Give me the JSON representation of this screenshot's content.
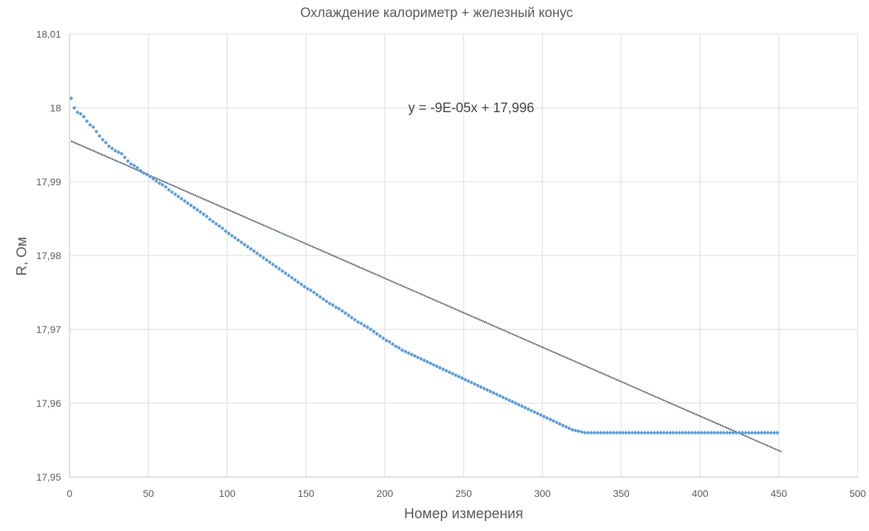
{
  "chart_data": {
    "type": "scatter",
    "title": "Охлаждение калориметр + железный конус",
    "xlabel": "Номер измерения",
    "ylabel": "R, Ом",
    "xlim": [
      0,
      500
    ],
    "ylim": [
      17.95,
      18.01
    ],
    "x_ticks": [
      0,
      50,
      100,
      150,
      200,
      250,
      300,
      350,
      400,
      450,
      500
    ],
    "x_tick_labels": [
      "0",
      "50",
      "100",
      "150",
      "200",
      "250",
      "300",
      "350",
      "400",
      "450",
      "500"
    ],
    "y_ticks": [
      17.95,
      17.96,
      17.97,
      17.98,
      17.99,
      18.0,
      18.01
    ],
    "y_tick_labels": [
      "17,95",
      "17,96",
      "17,97",
      "17,98",
      "17,99",
      "18",
      "18,01"
    ],
    "grid": true,
    "marker_color": "#5b9bd5",
    "trendline_color": "#1f2d3d",
    "series": [
      {
        "x_start": 1,
        "x_step": 2,
        "values": [
          18.0013,
          18.0,
          17.9994,
          17.9992,
          17.9988,
          17.9982,
          17.9977,
          17.9974,
          17.9968,
          17.9962,
          17.9957,
          17.9953,
          17.9948,
          17.9945,
          17.9942,
          17.994,
          17.9938,
          17.9933,
          17.9928,
          17.9924,
          17.9922,
          17.9919,
          17.9915,
          17.9912,
          17.991,
          17.9907,
          17.9904,
          17.9901,
          17.9898,
          17.9896,
          17.9893,
          17.9889,
          17.9886,
          17.9883,
          17.988,
          17.9877,
          17.9874,
          17.9871,
          17.9868,
          17.9865,
          17.9862,
          17.9859,
          17.9856,
          17.9853,
          17.9849,
          17.9846,
          17.9843,
          17.984,
          17.9837,
          17.9833,
          17.983,
          17.9827,
          17.9824,
          17.9821,
          17.9818,
          17.9815,
          17.9812,
          17.9809,
          17.9806,
          17.9803,
          17.98,
          17.9797,
          17.9794,
          17.9791,
          17.9788,
          17.9785,
          17.9782,
          17.9779,
          17.9776,
          17.9773,
          17.977,
          17.9767,
          17.9764,
          17.9761,
          17.9758,
          17.9755,
          17.9753,
          17.975,
          17.9747,
          17.9744,
          17.9741,
          17.9738,
          17.9735,
          17.9733,
          17.973,
          17.9728,
          17.9725,
          17.9722,
          17.9719,
          17.9716,
          17.9713,
          17.971,
          17.9708,
          17.9705,
          17.9703,
          17.97,
          17.9697,
          17.9694,
          17.9691,
          17.9688,
          17.9685,
          17.9683,
          17.968,
          17.9677,
          17.9675,
          17.9672,
          17.967,
          17.9668,
          17.9666,
          17.9664,
          17.9662,
          17.966,
          17.9658,
          17.9656,
          17.9654,
          17.9652,
          17.965,
          17.9648,
          17.9646,
          17.9644,
          17.9642,
          17.964,
          17.9638,
          17.9636,
          17.9634,
          17.9632,
          17.963,
          17.9628,
          17.9626,
          17.9624,
          17.9622,
          17.962,
          17.9618,
          17.9616,
          17.9614,
          17.9612,
          17.961,
          17.9608,
          17.9606,
          17.9604,
          17.9602,
          17.96,
          17.9598,
          17.9596,
          17.9594,
          17.9592,
          17.959,
          17.9588,
          17.9586,
          17.9584,
          17.9582,
          17.958,
          17.9578,
          17.9576,
          17.9574,
          17.9572,
          17.957,
          17.9568,
          17.9566,
          17.9564,
          17.9563,
          17.9562,
          17.9561,
          17.956,
          17.956,
          17.956,
          17.956,
          17.956,
          17.956,
          17.956,
          17.956,
          17.956,
          17.956,
          17.956,
          17.956,
          17.956,
          17.956,
          17.956,
          17.956,
          17.956,
          17.956,
          17.956,
          17.956,
          17.956,
          17.956,
          17.956,
          17.956,
          17.956,
          17.956,
          17.956,
          17.956,
          17.956,
          17.956,
          17.956,
          17.956,
          17.956,
          17.956,
          17.956,
          17.956,
          17.956,
          17.956,
          17.956,
          17.956,
          17.956,
          17.956,
          17.956,
          17.956,
          17.956,
          17.956,
          17.956,
          17.956,
          17.956,
          17.956,
          17.956,
          17.956,
          17.956,
          17.956,
          17.956,
          17.956,
          17.956,
          17.956,
          17.956,
          17.956,
          17.956,
          17.956
        ]
      }
    ],
    "trendline": {
      "equation": "y = -9E-05x + 17,996",
      "x": [
        1,
        452
      ],
      "y": [
        17.9955,
        17.9534
      ]
    }
  }
}
